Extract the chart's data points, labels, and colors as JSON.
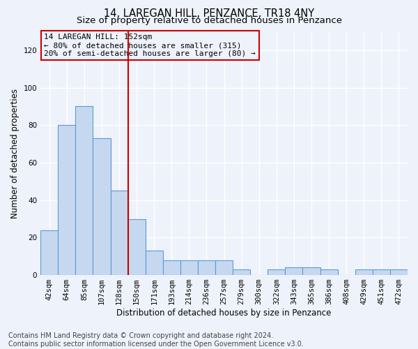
{
  "title": "14, LAREGAN HILL, PENZANCE, TR18 4NY",
  "subtitle": "Size of property relative to detached houses in Penzance",
  "xlabel": "Distribution of detached houses by size in Penzance",
  "ylabel": "Number of detached properties",
  "categories": [
    "42sqm",
    "64sqm",
    "85sqm",
    "107sqm",
    "128sqm",
    "150sqm",
    "171sqm",
    "193sqm",
    "214sqm",
    "236sqm",
    "257sqm",
    "279sqm",
    "300sqm",
    "322sqm",
    "343sqm",
    "365sqm",
    "386sqm",
    "408sqm",
    "429sqm",
    "451sqm",
    "472sqm"
  ],
  "values": [
    24,
    80,
    90,
    73,
    45,
    30,
    13,
    8,
    8,
    8,
    8,
    3,
    0,
    3,
    4,
    4,
    3,
    0,
    3,
    3,
    3
  ],
  "bar_color": "#c5d8f0",
  "bar_edge_color": "#5b9bd5",
  "marker_line_index": 5,
  "marker_line_color": "#cc0000",
  "annotation_line1": "14 LAREGAN HILL: 152sqm",
  "annotation_line2": "← 80% of detached houses are smaller (315)",
  "annotation_line3": "20% of semi-detached houses are larger (80) →",
  "ylim": [
    0,
    130
  ],
  "yticks": [
    0,
    20,
    40,
    60,
    80,
    100,
    120
  ],
  "footer_line1": "Contains HM Land Registry data © Crown copyright and database right 2024.",
  "footer_line2": "Contains public sector information licensed under the Open Government Licence v3.0.",
  "background_color": "#eef2fa",
  "grid_color": "#ffffff",
  "title_fontsize": 10.5,
  "subtitle_fontsize": 9.5,
  "axis_label_fontsize": 8.5,
  "tick_fontsize": 7.5,
  "annotation_fontsize": 8,
  "footer_fontsize": 7
}
